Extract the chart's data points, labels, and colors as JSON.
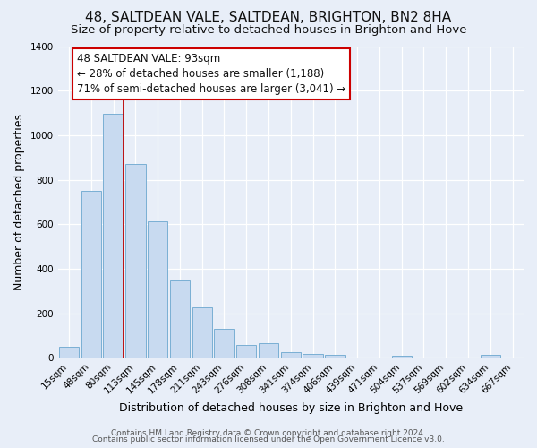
{
  "title": "48, SALTDEAN VALE, SALTDEAN, BRIGHTON, BN2 8HA",
  "subtitle": "Size of property relative to detached houses in Brighton and Hove",
  "xlabel": "Distribution of detached houses by size in Brighton and Hove",
  "ylabel": "Number of detached properties",
  "categories": [
    "15sqm",
    "48sqm",
    "80sqm",
    "113sqm",
    "145sqm",
    "178sqm",
    "211sqm",
    "243sqm",
    "276sqm",
    "308sqm",
    "341sqm",
    "374sqm",
    "406sqm",
    "439sqm",
    "471sqm",
    "504sqm",
    "537sqm",
    "569sqm",
    "602sqm",
    "634sqm",
    "667sqm"
  ],
  "values": [
    50,
    750,
    1095,
    870,
    615,
    348,
    228,
    130,
    60,
    68,
    25,
    18,
    15,
    0,
    0,
    10,
    0,
    0,
    0,
    15,
    0
  ],
  "bar_color": "#c8daf0",
  "bar_edge_color": "#7aafd4",
  "vline_x_index": 2,
  "vline_color": "#bb0000",
  "annotation_text": "48 SALTDEAN VALE: 93sqm\n← 28% of detached houses are smaller (1,188)\n71% of semi-detached houses are larger (3,041) →",
  "annotation_box_facecolor": "#ffffff",
  "annotation_box_edgecolor": "#cc0000",
  "ylim": [
    0,
    1400
  ],
  "yticks": [
    0,
    200,
    400,
    600,
    800,
    1000,
    1200,
    1400
  ],
  "footer1": "Contains HM Land Registry data © Crown copyright and database right 2024.",
  "footer2": "Contains public sector information licensed under the Open Government Licence v3.0.",
  "background_color": "#e8eef8",
  "plot_bg_color": "#e8eef8",
  "title_fontsize": 11,
  "subtitle_fontsize": 9.5,
  "axis_label_fontsize": 9,
  "tick_fontsize": 7.5,
  "annotation_fontsize": 8.5,
  "footer_fontsize": 6.5,
  "grid_color": "#ffffff"
}
